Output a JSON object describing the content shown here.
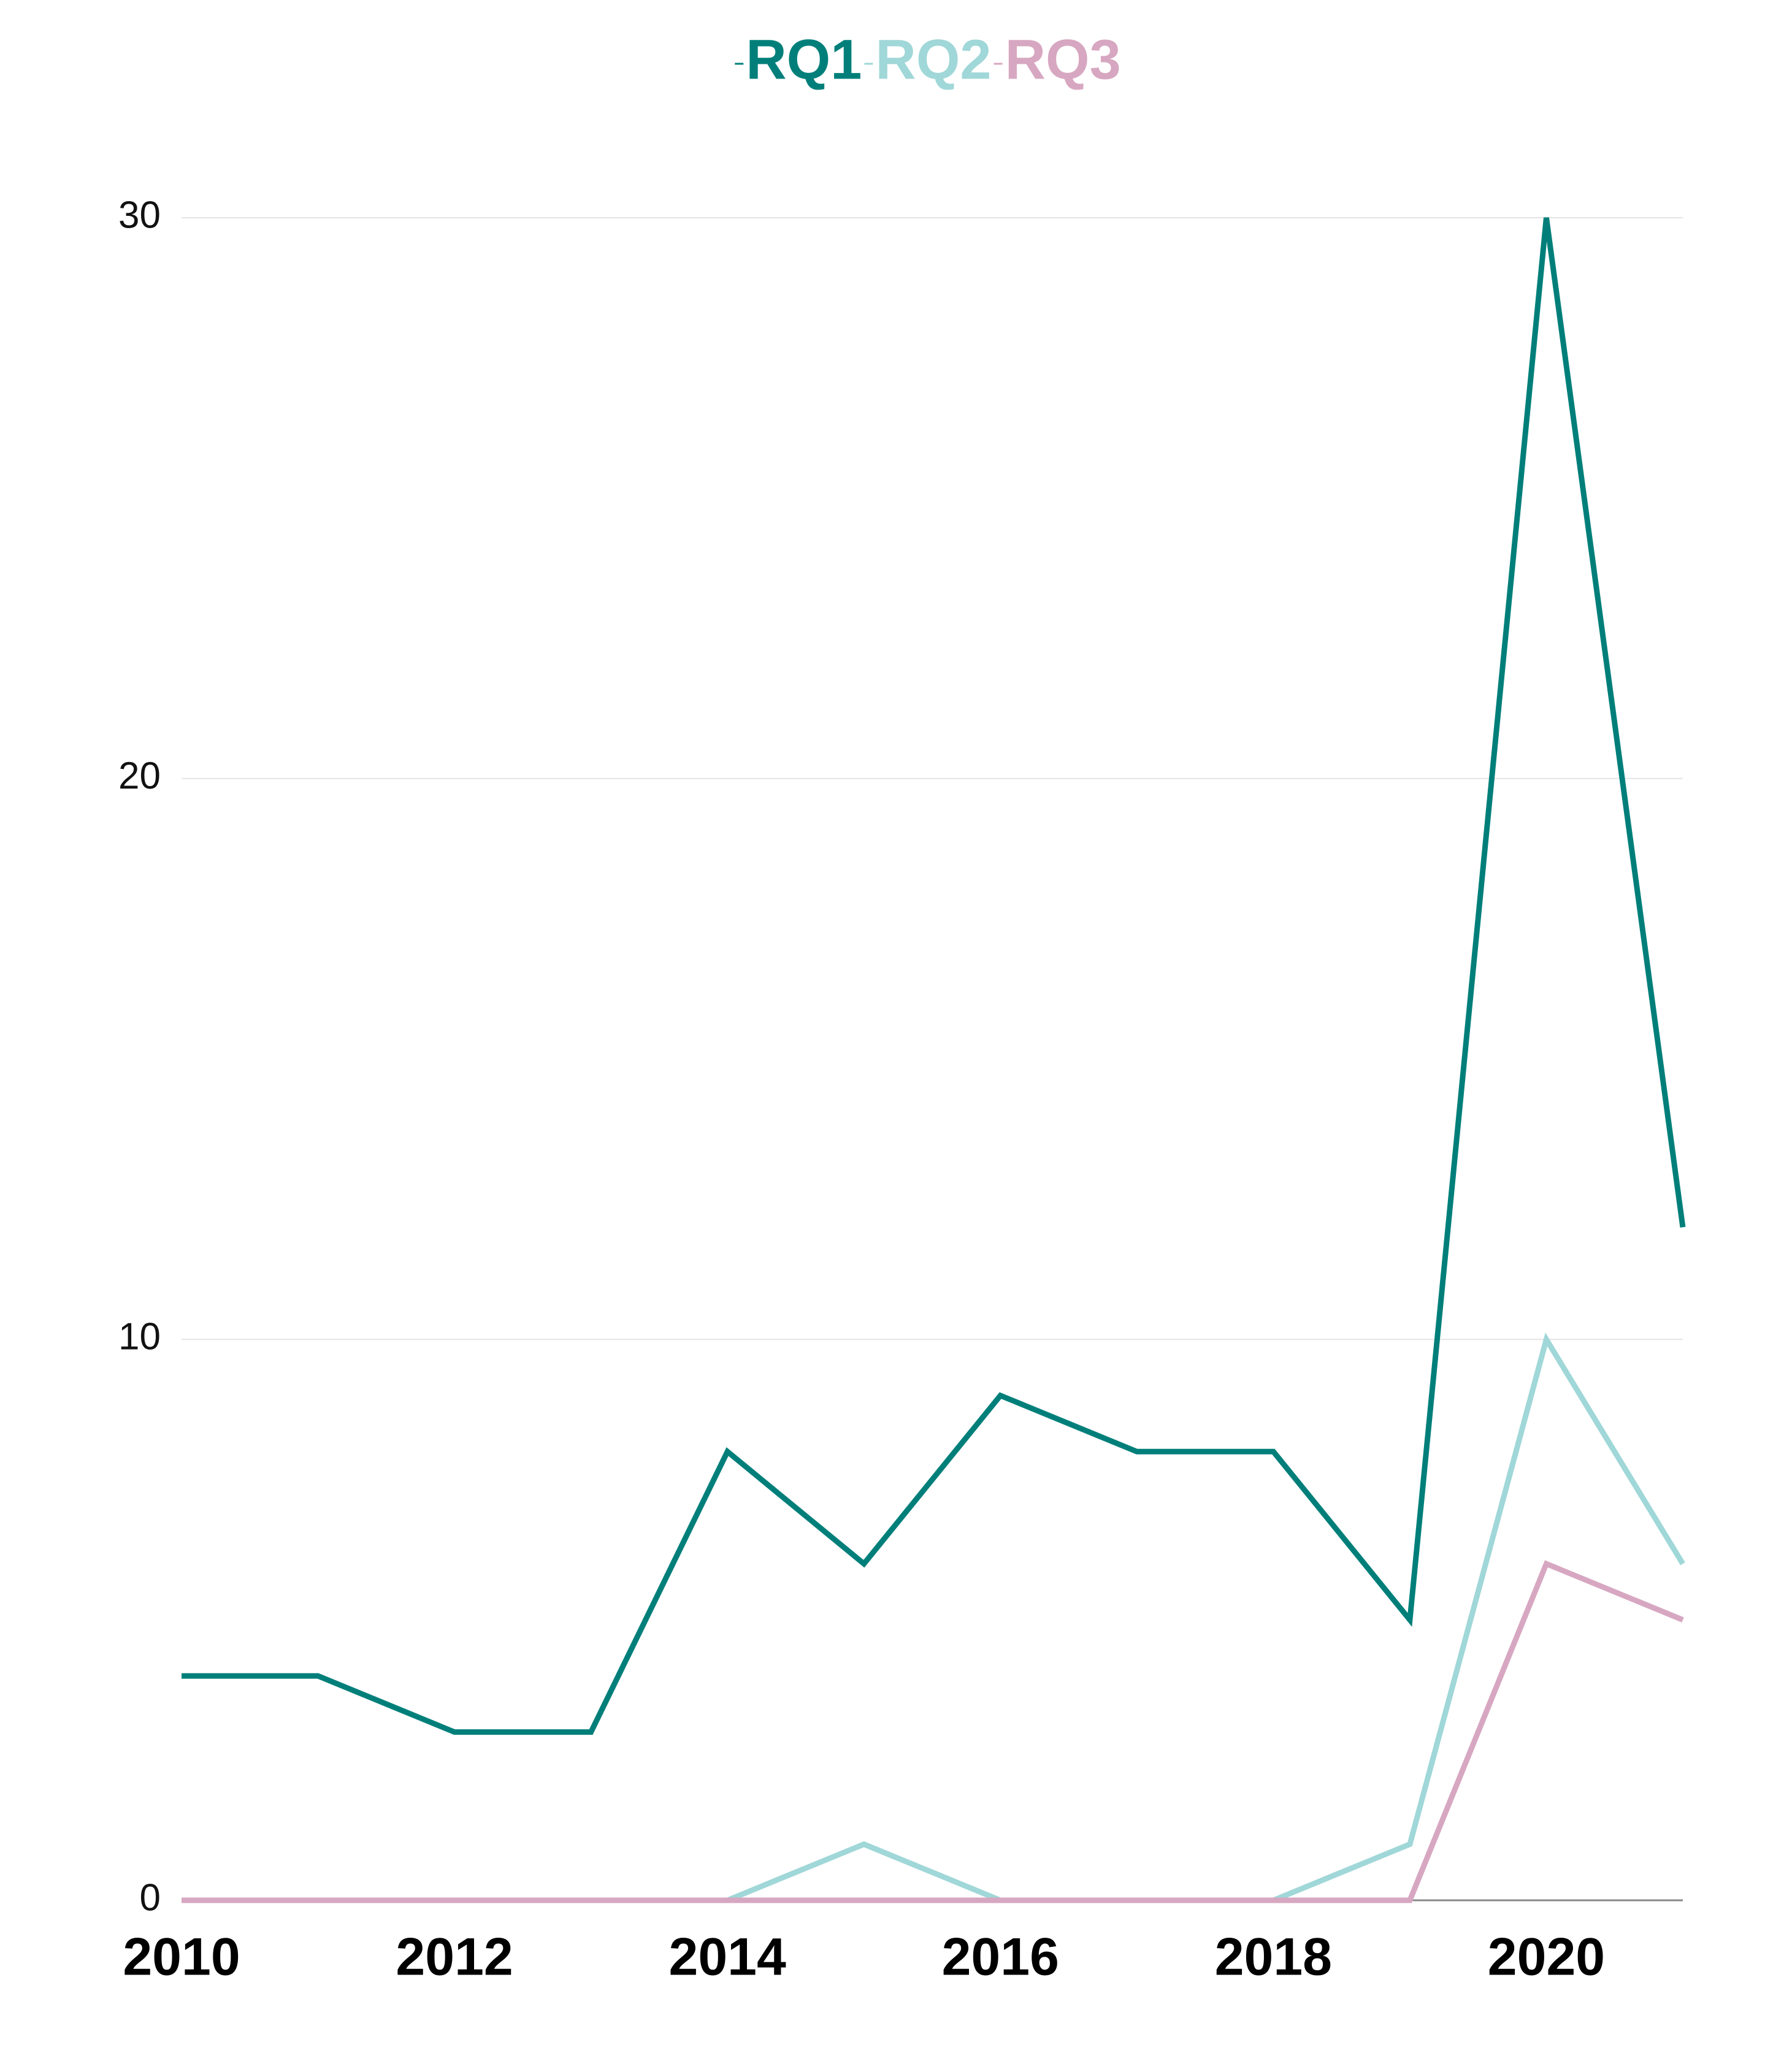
{
  "chart_data": {
    "type": "line",
    "x": [
      2010,
      2011,
      2012,
      2013,
      2014,
      2015,
      2016,
      2017,
      2018,
      2019,
      2020,
      2021
    ],
    "series": [
      {
        "name": "RQ1",
        "color": "#007f7a",
        "values": [
          4,
          4,
          3,
          3,
          8,
          6,
          9,
          8,
          8,
          5,
          30,
          12
        ]
      },
      {
        "name": "RQ2",
        "color": "#a0d7d8",
        "values": [
          0,
          0,
          0,
          0,
          0,
          1,
          0,
          0,
          0,
          1,
          10,
          6
        ]
      },
      {
        "name": "RQ3",
        "color": "#d7a7c1",
        "values": [
          0,
          0,
          0,
          0,
          0,
          0,
          0,
          0,
          0,
          0,
          6,
          5
        ]
      }
    ],
    "xlim": [
      2010,
      2021
    ],
    "xticks": [
      2010,
      2012,
      2014,
      2016,
      2018,
      2020
    ],
    "ylim": [
      0,
      30
    ],
    "yticks": [
      0,
      10,
      20,
      30
    ],
    "grid": true,
    "legend": "top"
  }
}
